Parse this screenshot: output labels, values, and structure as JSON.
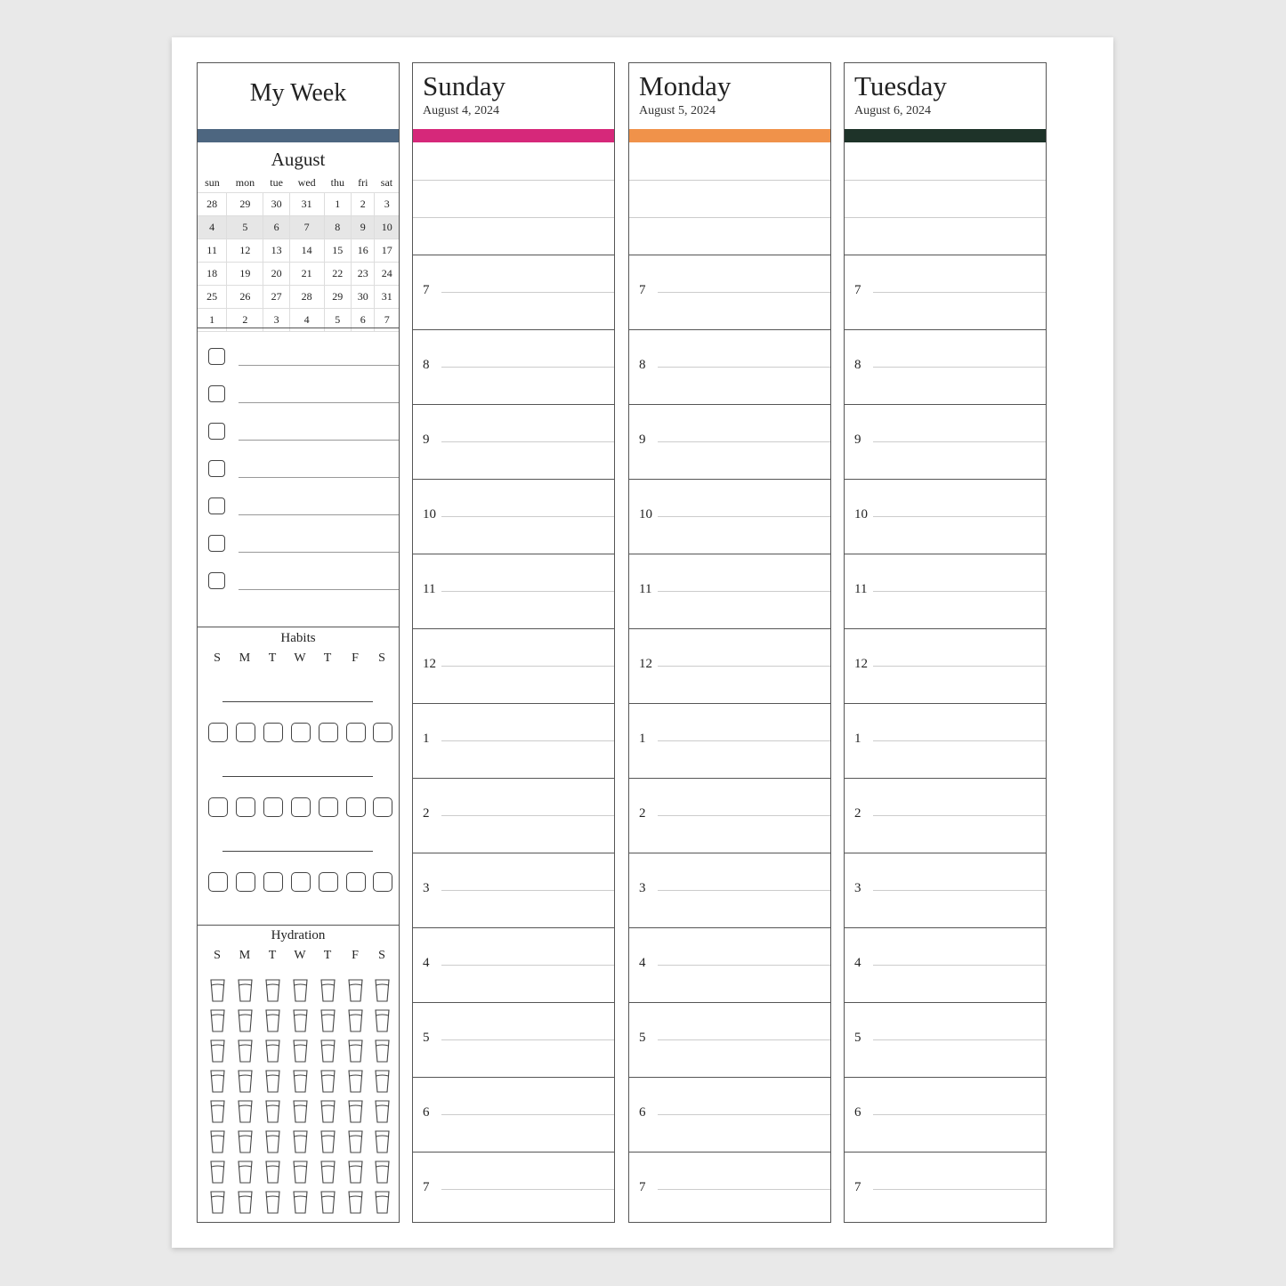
{
  "week_panel": {
    "title": "My Week",
    "accent": "#4d6680",
    "calendar": {
      "month": "August",
      "weekdays": [
        "sun",
        "mon",
        "tue",
        "wed",
        "thu",
        "fri",
        "sat"
      ],
      "weeks": [
        [
          "28",
          "29",
          "30",
          "31",
          "1",
          "2",
          "3"
        ],
        [
          "4",
          "5",
          "6",
          "7",
          "8",
          "9",
          "10"
        ],
        [
          "11",
          "12",
          "13",
          "14",
          "15",
          "16",
          "17"
        ],
        [
          "18",
          "19",
          "20",
          "21",
          "22",
          "23",
          "24"
        ],
        [
          "25",
          "26",
          "27",
          "28",
          "29",
          "30",
          "31"
        ],
        [
          "1",
          "2",
          "3",
          "4",
          "5",
          "6",
          "7"
        ]
      ],
      "highlighted_week": 1
    },
    "checklist_count": 7,
    "habits": {
      "title": "Habits",
      "days": [
        "S",
        "M",
        "T",
        "W",
        "T",
        "F",
        "S"
      ],
      "rows": 3
    },
    "hydration": {
      "title": "Hydration",
      "days": [
        "S",
        "M",
        "T",
        "W",
        "T",
        "F",
        "S"
      ],
      "glasses_per_day": 8
    }
  },
  "days": [
    {
      "name": "Sunday",
      "date": "August 4, 2024",
      "color": "#d6287a"
    },
    {
      "name": "Monday",
      "date": "August 5, 2024",
      "color": "#f0924a"
    },
    {
      "name": "Tuesday",
      "date": "August 6, 2024",
      "color": "#1e3329"
    }
  ],
  "hours": [
    "7",
    "8",
    "9",
    "10",
    "11",
    "12",
    "1",
    "2",
    "3",
    "4",
    "5",
    "6",
    "7"
  ]
}
